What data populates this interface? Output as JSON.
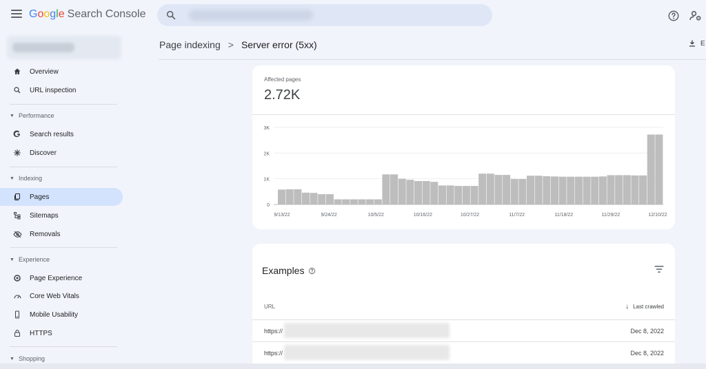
{
  "app": {
    "logo_letters": [
      "G",
      "o",
      "o",
      "g",
      "l",
      "e"
    ],
    "product_name": "Search Console"
  },
  "search": {
    "placeholder": ""
  },
  "sidebar": {
    "items": [
      {
        "label": "Overview",
        "icon": "home-icon"
      },
      {
        "label": "URL inspection",
        "icon": "search-icon"
      }
    ],
    "sections": [
      {
        "title": "Performance",
        "items": [
          {
            "label": "Search results",
            "icon": "google-g-icon"
          },
          {
            "label": "Discover",
            "icon": "asterisk-icon"
          }
        ]
      },
      {
        "title": "Indexing",
        "items": [
          {
            "label": "Pages",
            "icon": "pages-icon",
            "active": true
          },
          {
            "label": "Sitemaps",
            "icon": "sitemap-icon"
          },
          {
            "label": "Removals",
            "icon": "eye-off-icon"
          }
        ]
      },
      {
        "title": "Experience",
        "items": [
          {
            "label": "Page Experience",
            "icon": "page-experience-icon"
          },
          {
            "label": "Core Web Vitals",
            "icon": "gauge-icon"
          },
          {
            "label": "Mobile Usability",
            "icon": "phone-icon"
          },
          {
            "label": "HTTPS",
            "icon": "lock-icon"
          }
        ]
      },
      {
        "title": "Shopping",
        "items": []
      }
    ]
  },
  "header": {
    "breadcrumb_parent": "Page indexing",
    "breadcrumb_separator": ">",
    "breadcrumb_current": "Server error (5xx)",
    "export_label": "E"
  },
  "metric": {
    "label": "Affected pages",
    "value": "2.72K"
  },
  "chart_data": {
    "type": "bar",
    "title": "",
    "xlabel": "",
    "ylabel": "",
    "ylim": [
      0,
      3000
    ],
    "y_ticks": [
      "0",
      "1K",
      "2K",
      "3K"
    ],
    "y_tick_values": [
      0,
      1000,
      2000,
      3000
    ],
    "x_tick_labels": [
      "9/13/22",
      "9/24/22",
      "10/5/22",
      "10/16/22",
      "10/27/22",
      "11/7/22",
      "11/18/22",
      "11/29/22",
      "12/10/22"
    ],
    "bar_color": "#bdbdbd",
    "grid": true,
    "values": [
      580,
      590,
      590,
      460,
      450,
      400,
      400,
      200,
      200,
      200,
      200,
      200,
      200,
      1170,
      1170,
      1000,
      960,
      910,
      910,
      880,
      740,
      740,
      720,
      720,
      720,
      1200,
      1200,
      1150,
      1150,
      990,
      990,
      1120,
      1120,
      1100,
      1090,
      1080,
      1080,
      1080,
      1080,
      1080,
      1090,
      1140,
      1140,
      1140,
      1130,
      1130,
      2720,
      2720
    ]
  },
  "examples": {
    "title": "Examples",
    "col_url": "URL",
    "col_crawled": "Last crawled",
    "rows": [
      {
        "url": "https://",
        "date": "Dec 8, 2022"
      },
      {
        "url": "https://",
        "date": "Dec 8, 2022"
      }
    ]
  },
  "colors": {
    "background": "#f1f4fa",
    "active_nav": "#d3e3fd",
    "search_bg": "#dfe7f6"
  }
}
